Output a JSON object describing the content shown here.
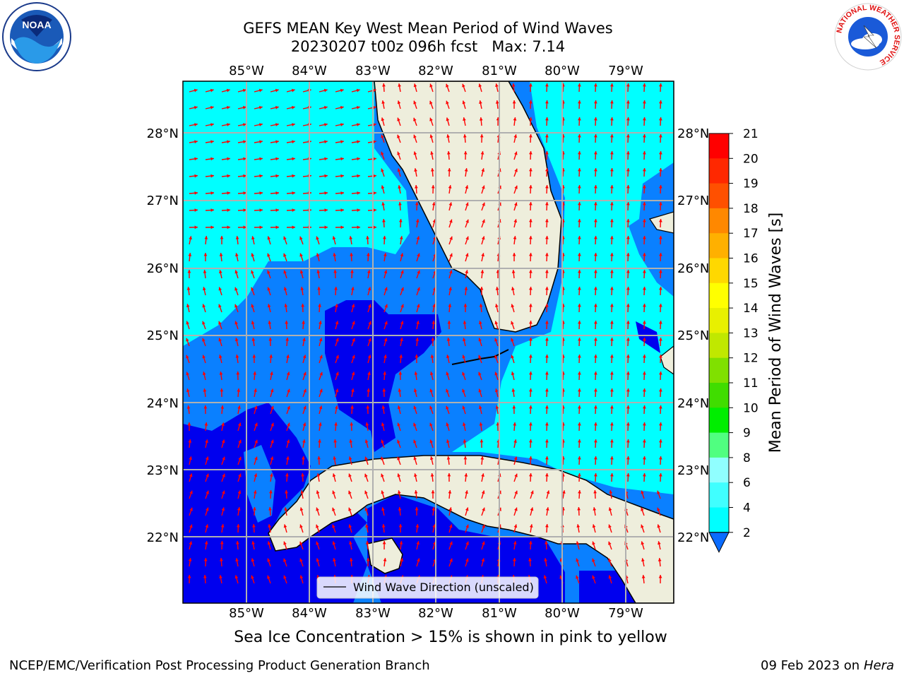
{
  "header": {
    "title_line1": "GEFS MEAN Key West Mean Period of Wind Waves",
    "title_line2": "20230207 t00z 096h fcst   Max: 7.14"
  },
  "map": {
    "lon_labels": [
      "85°W",
      "84°W",
      "83°W",
      "82°W",
      "81°W",
      "80°W",
      "79°W"
    ],
    "lat_labels": [
      "28°N",
      "27°N",
      "26°N",
      "25°N",
      "24°N",
      "23°N",
      "22°N"
    ],
    "legend_label": "Wind Wave Direction (unscaled)",
    "colors": {
      "land": "#eeeedc",
      "ocean_light": "#00ffff",
      "ocean_mid": "#0a80ff",
      "ocean_dark": "#0000ee",
      "arrow": "#ff0000"
    }
  },
  "colorbar": {
    "label": "Mean Period of Wind Waves [s]",
    "ticks": [
      "2",
      "4",
      "6",
      "8",
      "9",
      "10",
      "11",
      "12",
      "13",
      "14",
      "15",
      "16",
      "17",
      "18",
      "19",
      "20",
      "21"
    ],
    "colors": [
      "#0a6cff",
      "#00e0ff",
      "#00ffff",
      "#40ffff",
      "#90ffff",
      "#50ff80",
      "#00ee00",
      "#40dd00",
      "#80e000",
      "#c0e800",
      "#e8f000",
      "#ffff00",
      "#ffd800",
      "#ffb000",
      "#ff8800",
      "#ff5000",
      "#ff2800",
      "#ff0000"
    ]
  },
  "footer": {
    "caption": "Sea Ice Concentration > 15% is shown in pink to yellow",
    "credit": "NCEP/EMC/Verification Post Processing Product Generation Branch",
    "date": "09 Feb 2023 on",
    "host": "Hera"
  },
  "logos": {
    "noaa": "NOAA",
    "nws_ring": "NATIONAL WEATHER SERVICE"
  }
}
